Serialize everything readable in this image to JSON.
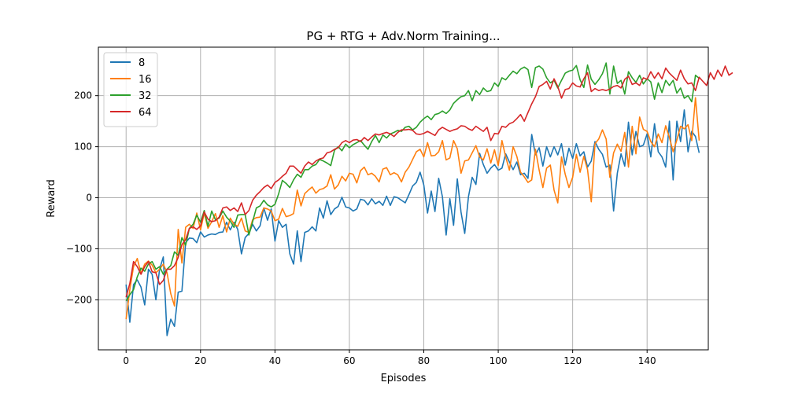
{
  "chart_data": {
    "type": "line",
    "title": "PG + RTG + Adv.Norm Training...",
    "xlabel": "Episodes",
    "ylabel": "Reward",
    "xlim": [
      -7.45,
      156.45
    ],
    "ylim": [
      -298,
      295
    ],
    "xticks": [
      0,
      20,
      40,
      60,
      80,
      100,
      120,
      140
    ],
    "yticks": [
      -200,
      -100,
      0,
      100,
      200
    ],
    "xtick_labels": [
      "0",
      "20",
      "40",
      "60",
      "80",
      "100",
      "120",
      "140"
    ],
    "ytick_labels": [
      "−200",
      "−100",
      "0",
      "100",
      "200"
    ],
    "grid": true,
    "legend_position": "upper-left",
    "series": [
      {
        "name": "8",
        "color": "#1f77b4",
        "values": [
          -170,
          -244,
          -170,
          -161,
          -175,
          -210,
          -140,
          -150,
          -200,
          -140,
          -116,
          -270,
          -238,
          -252,
          -185,
          -183,
          -88,
          -79,
          -80,
          -88,
          -67,
          -77,
          -73,
          -71,
          -72,
          -68,
          -67,
          -48,
          -63,
          -48,
          -62,
          -110,
          -78,
          -70,
          -52,
          -65,
          -55,
          -20,
          -44,
          -22,
          -85,
          -45,
          -58,
          -52,
          -110,
          -130,
          -65,
          -125,
          -68,
          -65,
          -57,
          -65,
          -20,
          -40,
          -6,
          -33,
          -22,
          -17,
          1,
          -18,
          -20,
          -26,
          -22,
          -3,
          -5,
          -14,
          -2,
          -12,
          -7,
          -15,
          3,
          -15,
          2,
          0,
          -5,
          -10,
          6,
          23,
          30,
          50,
          25,
          -30,
          13,
          -27,
          38,
          2,
          -73,
          -2,
          -54,
          37,
          -28,
          -70,
          2,
          40,
          26,
          87,
          65,
          48,
          58,
          65,
          54,
          58,
          86,
          70,
          55,
          70,
          45,
          48,
          38,
          124,
          84,
          98,
          62,
          100,
          80,
          100,
          84,
          106,
          64,
          97,
          77,
          106,
          82,
          90,
          60,
          72,
          110,
          95,
          85,
          60,
          64,
          -26,
          48,
          86,
          62,
          148,
          84,
          130,
          100,
          103,
          125,
          80,
          145,
          90,
          80,
          60,
          150,
          35,
          150,
          110,
          172,
          90,
          130,
          120,
          88
        ]
      },
      {
        "name": "16",
        "color": "#ff7f0e",
        "values": [
          -238,
          -180,
          -135,
          -119,
          -148,
          -130,
          -124,
          -132,
          -147,
          -140,
          -130,
          -147,
          -188,
          -212,
          -62,
          -128,
          -58,
          -52,
          -60,
          -30,
          -63,
          -30,
          -60,
          -47,
          -31,
          -58,
          -35,
          -67,
          -40,
          -52,
          -56,
          -40,
          -65,
          -68,
          -43,
          -39,
          -38,
          -20,
          -22,
          -26,
          -45,
          -42,
          -21,
          -37,
          -35,
          -31,
          15,
          -16,
          8,
          15,
          21,
          9,
          16,
          18,
          23,
          45,
          17,
          25,
          42,
          33,
          48,
          46,
          29,
          53,
          60,
          45,
          48,
          42,
          31,
          56,
          59,
          45,
          49,
          45,
          31,
          50,
          60,
          75,
          90,
          95,
          80,
          108,
          82,
          83,
          90,
          112,
          74,
          78,
          112,
          96,
          48,
          72,
          74,
          88,
          102,
          80,
          74,
          96,
          68,
          94,
          63,
          112,
          80,
          54,
          100,
          81,
          50,
          41,
          30,
          35,
          95,
          54,
          20,
          58,
          64,
          15,
          -10,
          80,
          46,
          20,
          40,
          85,
          50,
          81,
          55,
          -8,
          106,
          115,
          133,
          115,
          40,
          88,
          105,
          91,
          128,
          60,
          140,
          86,
          158,
          134,
          130,
          110,
          100,
          125,
          108,
          141,
          118,
          90,
          113,
          140,
          135,
          143,
          112,
          196,
          112
        ]
      },
      {
        "name": "32",
        "color": "#2ca02c",
        "values": [
          -202,
          -190,
          -180,
          -155,
          -138,
          -144,
          -130,
          -125,
          -140,
          -135,
          -150,
          -140,
          -133,
          -106,
          -113,
          -78,
          -93,
          -60,
          -52,
          -34,
          -48,
          -25,
          -56,
          -26,
          -43,
          -40,
          -26,
          -38,
          -46,
          -58,
          -34,
          -33,
          -33,
          -73,
          -47,
          -20,
          -16,
          -5,
          -14,
          -18,
          -13,
          8,
          34,
          28,
          20,
          35,
          46,
          40,
          55,
          55,
          62,
          65,
          75,
          72,
          68,
          63,
          93,
          100,
          92,
          105,
          98,
          104,
          108,
          112,
          103,
          95,
          110,
          122,
          108,
          123,
          117,
          125,
          128,
          132,
          130,
          138,
          140,
          133,
          138,
          148,
          155,
          160,
          153,
          163,
          165,
          170,
          165,
          172,
          185,
          192,
          198,
          200,
          210,
          190,
          210,
          202,
          215,
          208,
          210,
          225,
          218,
          235,
          231,
          240,
          248,
          243,
          252,
          256,
          251,
          216,
          255,
          258,
          252,
          235,
          225,
          230,
          215,
          230,
          244,
          248,
          250,
          259,
          231,
          216,
          260,
          232,
          222,
          231,
          243,
          264,
          203,
          258,
          224,
          230,
          203,
          247,
          235,
          226,
          240,
          223,
          233,
          227,
          193,
          225,
          206,
          230,
          220,
          230,
          205,
          215,
          195,
          200,
          188,
          240,
          234
        ]
      },
      {
        "name": "64",
        "color": "#d62728",
        "values": [
          -195,
          -168,
          -125,
          -135,
          -150,
          -135,
          -125,
          -145,
          -147,
          -170,
          -162,
          -140,
          -140,
          -133,
          -117,
          -92,
          -82,
          -60,
          -57,
          -62,
          -55,
          -28,
          -42,
          -47,
          -45,
          -38,
          -20,
          -18,
          -25,
          -20,
          -27,
          -10,
          -33,
          -25,
          -5,
          5,
          12,
          20,
          25,
          18,
          30,
          35,
          42,
          48,
          62,
          62,
          55,
          48,
          62,
          70,
          65,
          72,
          76,
          78,
          88,
          90,
          95,
          98,
          108,
          112,
          108,
          113,
          114,
          110,
          118,
          112,
          119,
          125,
          123,
          126,
          128,
          125,
          120,
          128,
          133,
          133,
          134,
          132,
          125,
          124,
          126,
          130,
          126,
          122,
          133,
          138,
          134,
          130,
          133,
          135,
          141,
          140,
          135,
          132,
          140,
          135,
          130,
          138,
          112,
          126,
          125,
          140,
          138,
          145,
          148,
          155,
          163,
          150,
          167,
          184,
          198,
          218,
          222,
          228,
          213,
          233,
          218,
          195,
          212,
          214,
          225,
          219,
          217,
          233,
          245,
          208,
          214,
          210,
          212,
          210,
          213,
          218,
          220,
          215,
          232,
          238,
          222,
          225,
          220,
          235,
          232,
          247,
          234,
          245,
          233,
          254,
          244,
          237,
          230,
          250,
          233,
          223,
          225,
          210,
          236,
          228,
          220,
          245,
          232,
          250,
          238,
          258,
          240,
          245
        ]
      }
    ]
  }
}
